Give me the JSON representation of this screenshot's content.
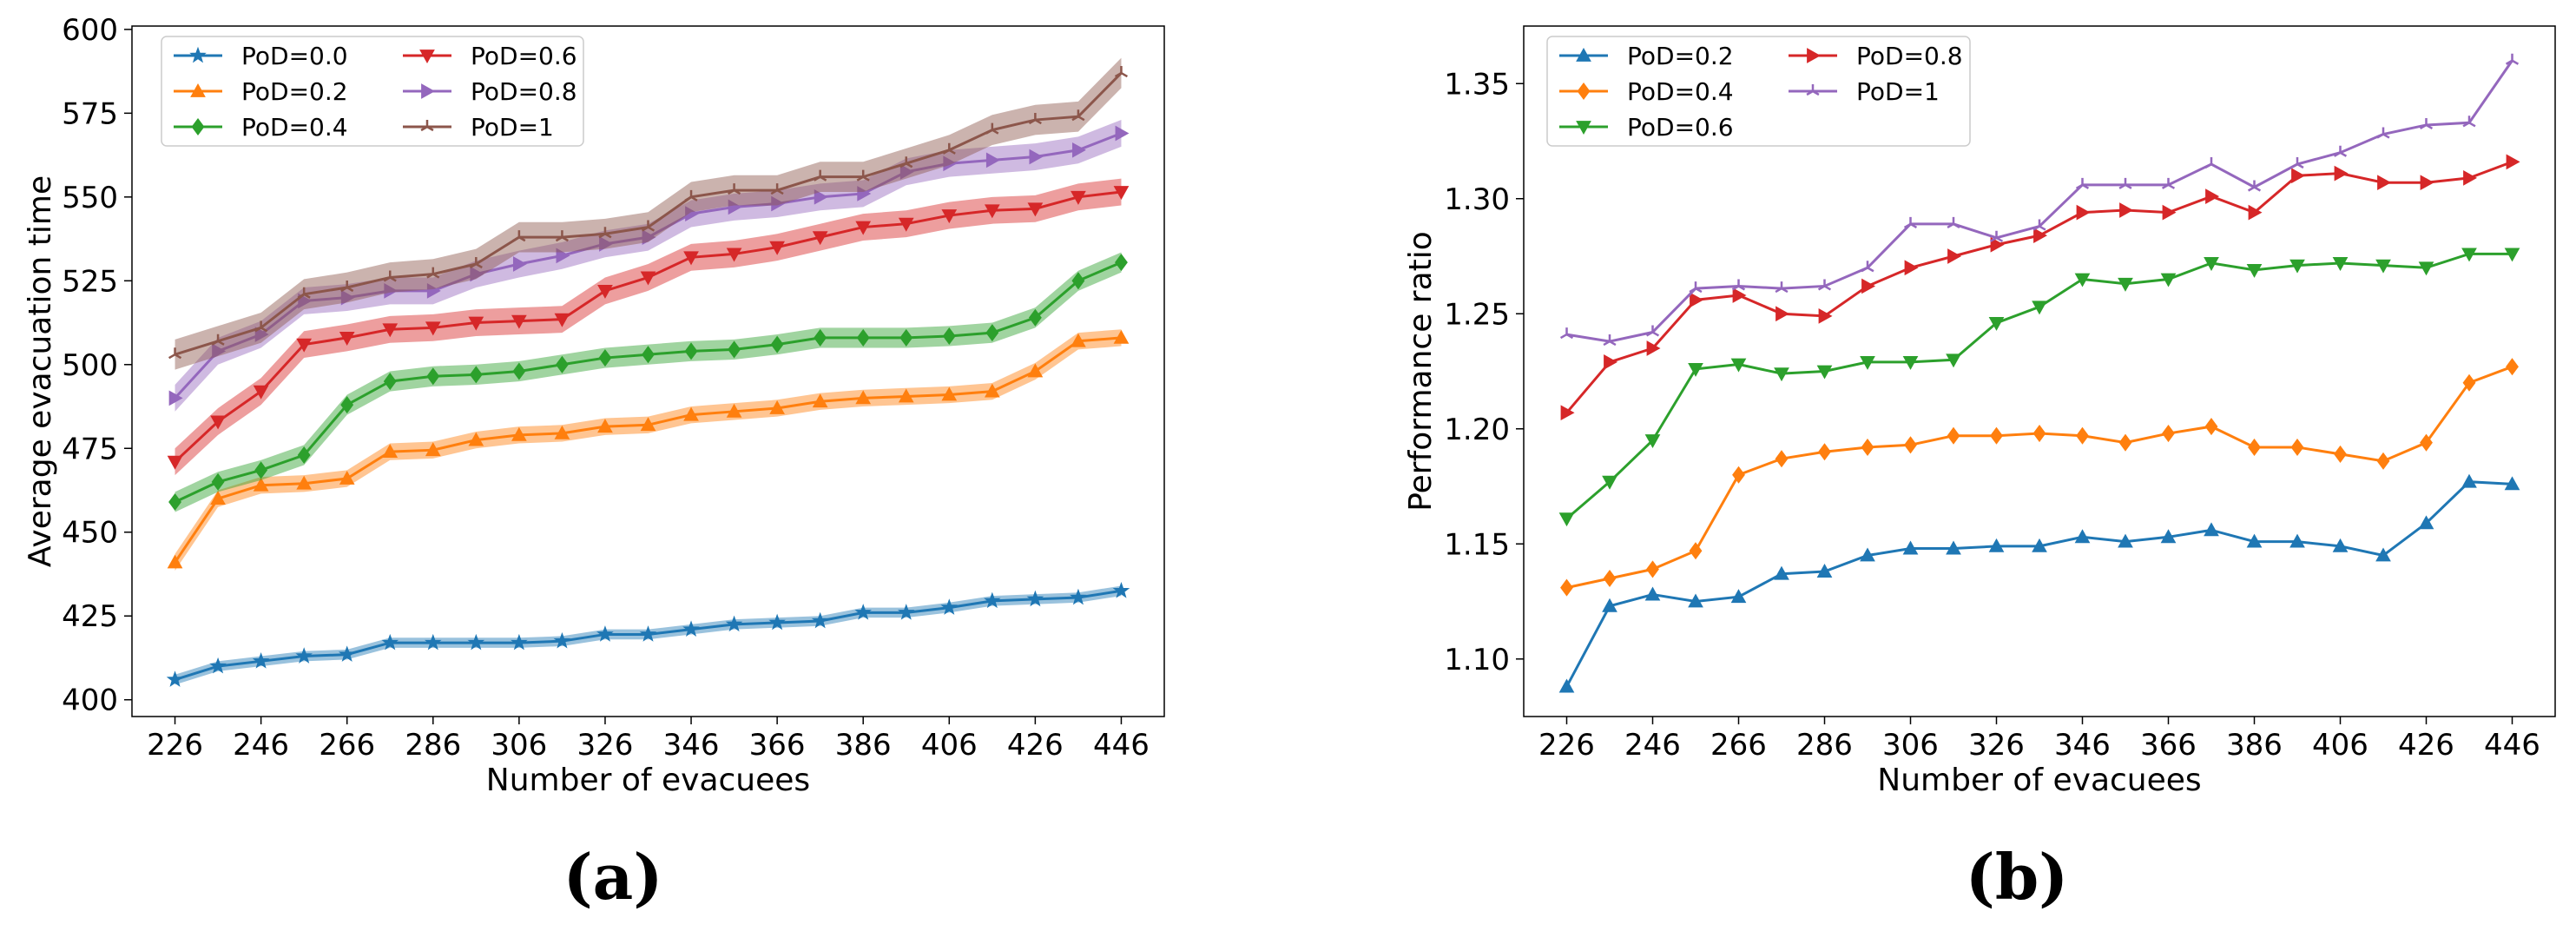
{
  "chart_data": [
    {
      "type": "line",
      "panel_label": "(a)",
      "xlabel": "Number of evacuees",
      "ylabel": "Average evacuation time",
      "xlim": [
        216,
        456
      ],
      "ylim": [
        395,
        601
      ],
      "xticks": [
        226,
        246,
        266,
        286,
        306,
        326,
        346,
        366,
        386,
        406,
        426,
        446
      ],
      "yticks": [
        400,
        425,
        450,
        475,
        500,
        525,
        550,
        575,
        600
      ],
      "grid": false,
      "legend": {
        "position": "top-left",
        "columns": 2
      },
      "x": [
        226,
        236,
        246,
        256,
        266,
        276,
        286,
        296,
        306,
        316,
        326,
        336,
        346,
        356,
        366,
        376,
        386,
        396,
        406,
        416,
        426,
        436,
        446
      ],
      "series": [
        {
          "name": "PoD=0.0",
          "color": "#1f77b4",
          "marker": "star",
          "band": 1.5,
          "values": [
            406,
            410,
            411.5,
            413,
            413.5,
            417,
            417,
            417,
            417,
            417.5,
            419.5,
            419.5,
            421,
            422.5,
            423,
            423.5,
            426,
            426,
            427.5,
            429.5,
            430,
            430.5,
            432.5
          ]
        },
        {
          "name": "PoD=0.2",
          "color": "#ff7f0e",
          "marker": "triangle-up",
          "band": 2.5,
          "values": [
            441,
            460,
            464,
            464.5,
            466,
            474,
            474.5,
            477.5,
            479,
            479.5,
            481.5,
            482,
            485,
            486,
            487,
            489,
            490,
            490.5,
            491,
            492,
            498,
            507,
            508
          ]
        },
        {
          "name": "PoD=0.4",
          "color": "#2ca02c",
          "marker": "diamond",
          "band": 3,
          "values": [
            459,
            465,
            468.5,
            473,
            488,
            495,
            496.5,
            497,
            498,
            500,
            502,
            503,
            504,
            504.5,
            506,
            508,
            508,
            508,
            508.5,
            509.5,
            514,
            525,
            530.5
          ]
        },
        {
          "name": "PoD=0.6",
          "color": "#d62728",
          "marker": "triangle-down",
          "band": 4,
          "values": [
            471,
            483,
            492,
            506,
            508,
            510.5,
            511,
            512.5,
            513,
            513.5,
            522,
            526,
            532,
            533,
            535,
            538,
            541,
            542,
            544.5,
            546,
            546.5,
            550,
            551.5
          ]
        },
        {
          "name": "PoD=0.8",
          "color": "#9467bd",
          "marker": "triangle-right",
          "band": 4,
          "values": [
            490,
            504,
            509,
            519,
            520,
            522,
            522,
            527,
            530,
            532.5,
            536,
            538,
            545,
            547,
            548,
            550,
            551,
            557.5,
            560,
            561,
            562,
            564,
            569
          ]
        },
        {
          "name": "PoD=1",
          "color": "#8c564b",
          "marker": "tri",
          "band": 4.5,
          "values": [
            503,
            507,
            511,
            521,
            523,
            526,
            527,
            530,
            538,
            538,
            539,
            541,
            550,
            552,
            552,
            556,
            556,
            560,
            564,
            570,
            573,
            574,
            587
          ]
        }
      ]
    },
    {
      "type": "line",
      "panel_label": "(b)",
      "xlabel": "Number of evacuees",
      "ylabel": "Performance ratio",
      "xlim": [
        216,
        456
      ],
      "ylim": [
        1.075,
        1.375
      ],
      "xticks": [
        226,
        246,
        266,
        286,
        306,
        326,
        346,
        366,
        386,
        406,
        426,
        446
      ],
      "yticks": [
        "1.10",
        "1.15",
        "1.20",
        "1.25",
        "1.30",
        "1.35"
      ],
      "grid": false,
      "legend": {
        "position": "top-left",
        "columns": 2
      },
      "x": [
        226,
        236,
        246,
        256,
        266,
        276,
        286,
        296,
        306,
        316,
        326,
        336,
        346,
        356,
        366,
        376,
        386,
        396,
        406,
        416,
        426,
        436,
        446
      ],
      "series": [
        {
          "name": "PoD=0.2",
          "color": "#1f77b4",
          "marker": "triangle-up",
          "values": [
            1.088,
            1.123,
            1.128,
            1.125,
            1.127,
            1.137,
            1.138,
            1.145,
            1.148,
            1.148,
            1.149,
            1.149,
            1.153,
            1.151,
            1.153,
            1.156,
            1.151,
            1.151,
            1.149,
            1.145,
            1.159,
            1.177,
            1.176
          ]
        },
        {
          "name": "PoD=0.4",
          "color": "#ff7f0e",
          "marker": "diamond",
          "values": [
            1.131,
            1.135,
            1.139,
            1.147,
            1.18,
            1.187,
            1.19,
            1.192,
            1.193,
            1.197,
            1.197,
            1.198,
            1.197,
            1.194,
            1.198,
            1.201,
            1.192,
            1.192,
            1.189,
            1.186,
            1.194,
            1.22,
            1.227
          ]
        },
        {
          "name": "PoD=0.6",
          "color": "#2ca02c",
          "marker": "triangle-down",
          "values": [
            1.161,
            1.177,
            1.195,
            1.226,
            1.228,
            1.224,
            1.225,
            1.229,
            1.229,
            1.23,
            1.246,
            1.253,
            1.265,
            1.263,
            1.265,
            1.272,
            1.269,
            1.271,
            1.272,
            1.271,
            1.27,
            1.276,
            1.276
          ]
        },
        {
          "name": "PoD=0.8",
          "color": "#d62728",
          "marker": "triangle-right",
          "values": [
            1.207,
            1.229,
            1.235,
            1.256,
            1.258,
            1.25,
            1.249,
            1.262,
            1.27,
            1.275,
            1.28,
            1.284,
            1.294,
            1.295,
            1.294,
            1.301,
            1.294,
            1.31,
            1.311,
            1.307,
            1.307,
            1.309,
            1.316
          ]
        },
        {
          "name": "PoD=1",
          "color": "#9467bd",
          "marker": "tri",
          "values": [
            1.241,
            1.238,
            1.242,
            1.261,
            1.262,
            1.261,
            1.262,
            1.27,
            1.289,
            1.289,
            1.283,
            1.288,
            1.306,
            1.306,
            1.306,
            1.315,
            1.305,
            1.315,
            1.32,
            1.328,
            1.332,
            1.333,
            1.36
          ]
        }
      ]
    }
  ]
}
